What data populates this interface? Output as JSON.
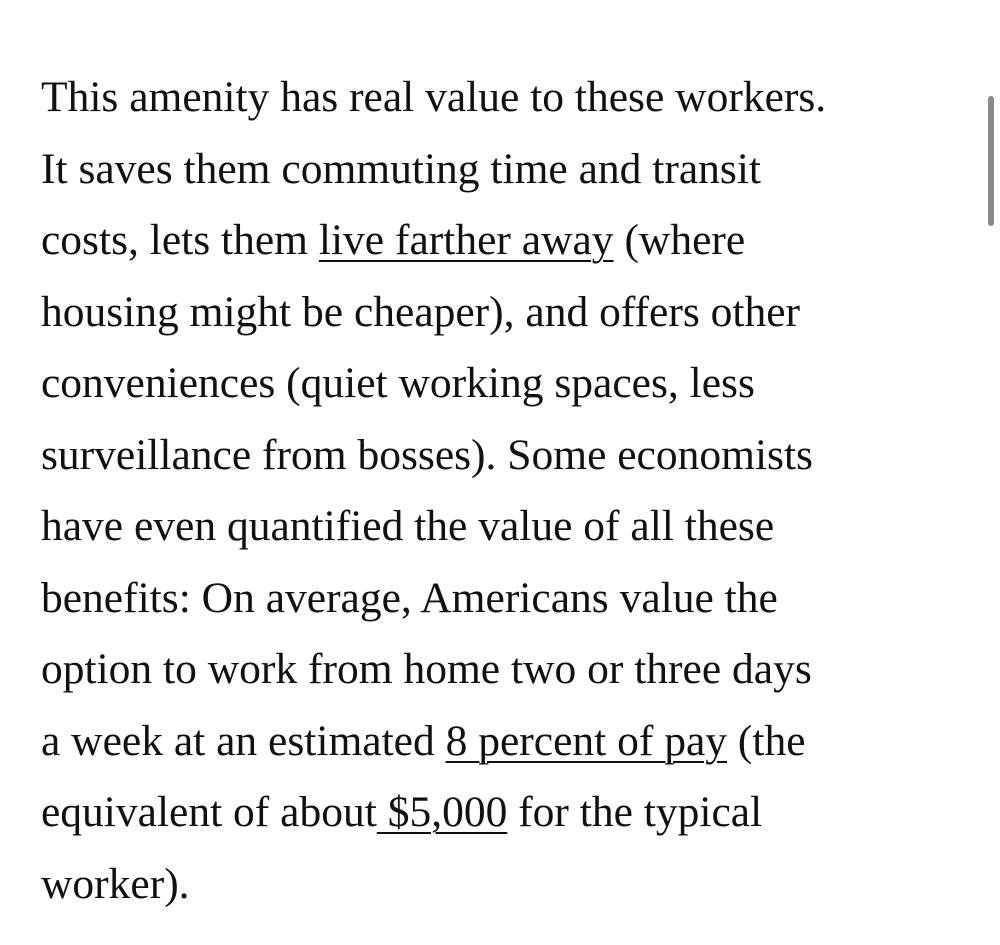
{
  "article": {
    "lines": [
      {
        "segments": [
          {
            "text": "This amenity has real value to these workers.",
            "link": false
          }
        ]
      },
      {
        "segments": [
          {
            "text": "It saves them commuting time and transit",
            "link": false
          }
        ]
      },
      {
        "segments": [
          {
            "text": "costs, lets them ",
            "link": false
          },
          {
            "text": "live farther away",
            "link": true
          },
          {
            "text": " (where",
            "link": false
          }
        ]
      },
      {
        "segments": [
          {
            "text": "housing might be cheaper), and offers other",
            "link": false
          }
        ]
      },
      {
        "segments": [
          {
            "text": "conveniences (quiet working spaces, less",
            "link": false
          }
        ]
      },
      {
        "segments": [
          {
            "text": "surveillance from bosses). Some economists",
            "link": false
          }
        ]
      },
      {
        "segments": [
          {
            "text": "have even quantified the value of all these",
            "link": false
          }
        ]
      },
      {
        "segments": [
          {
            "text": "benefits: On average, Americans value the",
            "link": false
          }
        ]
      },
      {
        "segments": [
          {
            "text": "option to work from home two or three days",
            "link": false
          }
        ]
      },
      {
        "segments": [
          {
            "text": "a week at an estimated ",
            "link": false
          },
          {
            "text": "8 percent of pay",
            "link": true
          },
          {
            "text": " (the",
            "link": false
          }
        ]
      },
      {
        "segments": [
          {
            "text": "equivalent of about",
            "link": false
          },
          {
            "text": " $5,000",
            "link": true
          },
          {
            "text": " for the typical",
            "link": false
          }
        ]
      },
      {
        "segments": [
          {
            "text": "worker).",
            "link": false
          }
        ]
      }
    ]
  },
  "colors": {
    "text": "#111111",
    "background": "#ffffff",
    "scrollbar": "#8a8a8a"
  }
}
